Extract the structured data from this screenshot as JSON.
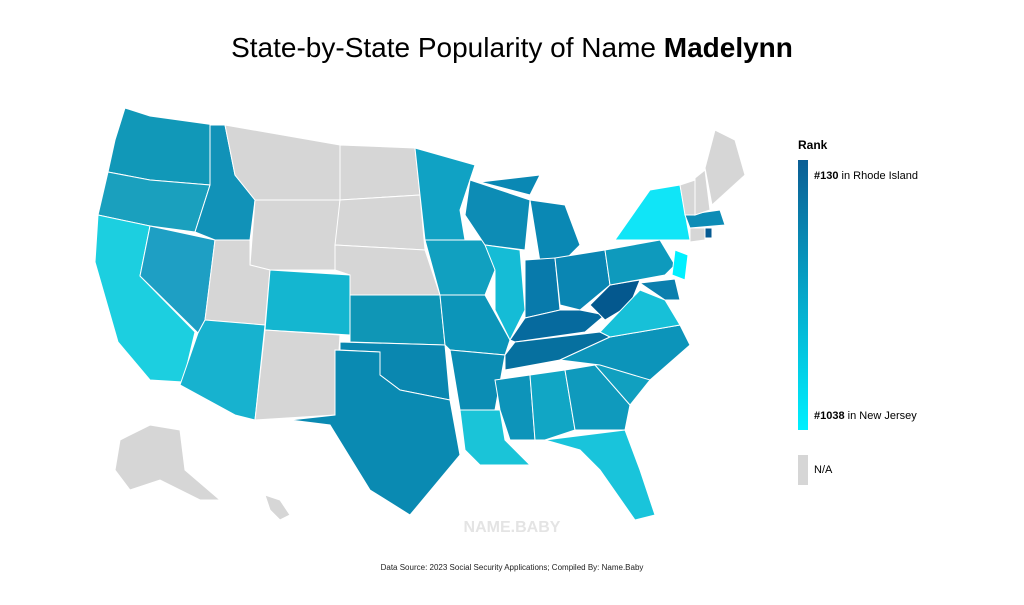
{
  "title": {
    "prefix": "State-by-State Popularity of Name ",
    "name": "Madelynn"
  },
  "legend": {
    "title": "Rank",
    "high": {
      "rank": "#130",
      "place": " in Rhode Island",
      "color": "#0b5e94"
    },
    "low": {
      "rank": "#1038",
      "place": " in New Jersey",
      "color": "#00f0ff"
    },
    "na": {
      "label": "N/A",
      "color": "#d6d6d6"
    }
  },
  "watermark": "NAME.BABY",
  "footer": "Data Source: 2023 Social Security Applications; Compiled By: Name.Baby",
  "regions": {
    "WA": "#1198b8",
    "OR": "#1aa0be",
    "CA": "#1ccfe0",
    "NV": "#1e9fc4",
    "ID": "#1192b8",
    "MT": "#d6d6d6",
    "WY": "#d6d6d6",
    "UT": "#d6d6d6",
    "AZ": "#17b2cf",
    "CO": "#14b6d0",
    "NM": "#d6d6d6",
    "ND": "#d6d6d6",
    "SD": "#d6d6d6",
    "NE": "#d6d6d6",
    "KS": "#0f96b6",
    "OK": "#0a87b0",
    "TX": "#0a8ab2",
    "MN": "#10a2c4",
    "IA": "#11a0c0",
    "MO": "#0c95b9",
    "AR": "#0b8db4",
    "LA": "#1ac4d8",
    "WI": "#0d8cb5",
    "IL": "#15bcd6",
    "MI": "#0a88b4",
    "IN": "#087aab",
    "OH": "#0a86b3",
    "KY": "#066a9e",
    "TN": "#06709f",
    "WV": "#04588e",
    "MS": "#0d94ba",
    "AL": "#11a6c5",
    "GA": "#0f9abd",
    "FL": "#19c4db",
    "SC": "#11a0c0",
    "NC": "#0c94ba",
    "VA": "#17c0d8",
    "PA": "#0e9abd",
    "NY": "#10e5f7",
    "NJ": "#00f0ff",
    "MD": "#0b7fae",
    "MA": "#0d8cb6",
    "RI": "#055a92",
    "VT": "#d6d6d6",
    "NH": "#d6d6d6",
    "ME": "#d6d6d6",
    "CT": "#d6d6d6",
    "AK": "#d6d6d6",
    "HI": "#d6d6d6"
  }
}
